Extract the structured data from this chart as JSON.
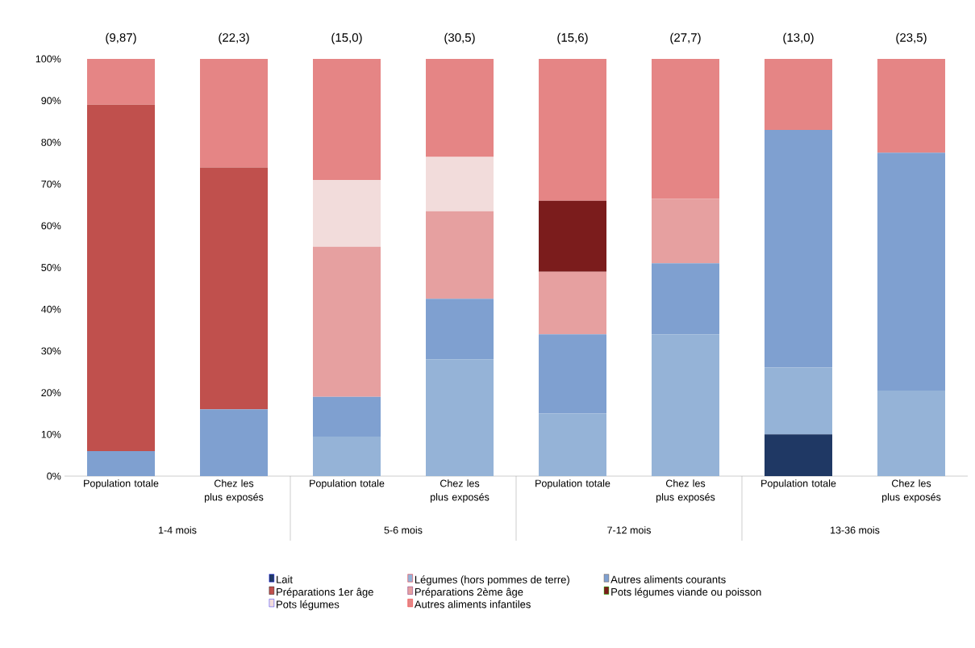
{
  "chart_data": {
    "type": "bar",
    "stacked": true,
    "categories": [
      "Population totale",
      "Chez les plus exposés",
      "Population totale",
      "Chez les plus exposés",
      "Population totale",
      "Chez les plus exposés",
      "Population totale",
      "Chez les plus exposés"
    ],
    "series": [
      {
        "name": "Lait",
        "color": "#1f3864",
        "values": [
          0,
          0,
          0,
          0,
          0,
          0,
          10,
          0
        ]
      },
      {
        "name": "Légumes (hors pommes de terre)",
        "color": "#95b3d7",
        "values": [
          0,
          0,
          9.5,
          28,
          15,
          34,
          16,
          20.5
        ]
      },
      {
        "name": "Autres aliments courants",
        "color": "#7fa0d0",
        "values": [
          6,
          16,
          9.5,
          14.5,
          19,
          17,
          57,
          57
        ]
      },
      {
        "name": "Préparations 1er âge",
        "color": "#c0504d",
        "values": [
          83,
          58,
          0,
          0,
          0,
          0,
          0,
          0
        ]
      },
      {
        "name": "Préparations 2ème âge",
        "color": "#e6a0a0",
        "values": [
          0,
          0,
          36,
          21,
          15,
          15.5,
          0,
          0
        ]
      },
      {
        "name": "Pots légumes viande ou poisson",
        "color": "#7b1c1c",
        "values": [
          0,
          0,
          0,
          0,
          17,
          0,
          0,
          0
        ]
      },
      {
        "name": "Pots légumes",
        "color": "#f2dcdb",
        "values": [
          0,
          0,
          16,
          13,
          0,
          0,
          0,
          0
        ]
      },
      {
        "name": "Autres aliments infantiles",
        "color": "#e58585",
        "values": [
          11,
          26,
          29,
          23.5,
          34,
          33.5,
          17,
          22.5
        ]
      }
    ],
    "ylim": [
      0,
      100
    ],
    "yticks": [
      {
        "value": 0,
        "label": "0%"
      },
      {
        "value": 10,
        "label": "10%"
      },
      {
        "value": 20,
        "label": "20%"
      },
      {
        "value": 30,
        "label": "30%"
      },
      {
        "value": 40,
        "label": "40%"
      },
      {
        "value": 50,
        "label": "50%"
      },
      {
        "value": 60,
        "label": "60%"
      },
      {
        "value": 70,
        "label": "70%"
      },
      {
        "value": 80,
        "label": "80%"
      },
      {
        "value": 90,
        "label": "90%"
      },
      {
        "value": 100,
        "label": "100%"
      }
    ],
    "annotations": [
      "(9,87)",
      "(22,3)",
      "(15,0)",
      "(30,5)",
      "(15,6)",
      "(27,7)",
      "(13,0)",
      "(23,5)",
      "1-4 mois",
      "5-6 mois",
      "7-12 mois",
      "13-36 mois"
    ],
    "legend": "bottom"
  }
}
